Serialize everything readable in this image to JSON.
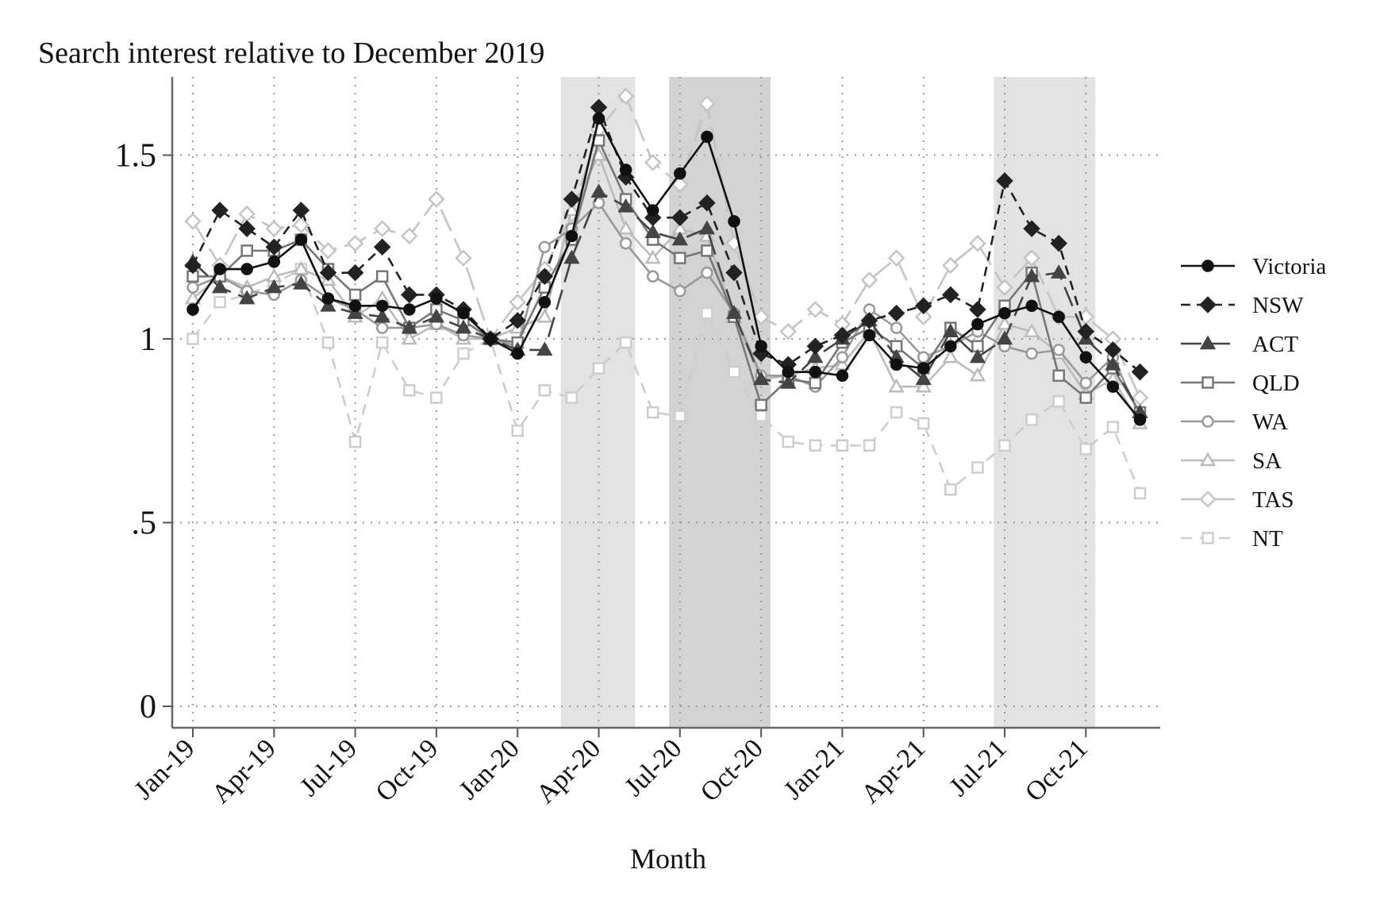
{
  "chart_data": {
    "type": "line",
    "title": "Search interest relative to December 2019",
    "xlabel": "Month",
    "ylabel": "",
    "ylim": [
      -0.04,
      1.71
    ],
    "yticks": [
      0,
      0.5,
      1,
      1.5
    ],
    "ytick_labels": [
      "0",
      ".5",
      "1",
      "1.5"
    ],
    "months": [
      "Jan-19",
      "Feb-19",
      "Mar-19",
      "Apr-19",
      "May-19",
      "Jun-19",
      "Jul-19",
      "Aug-19",
      "Sep-19",
      "Oct-19",
      "Nov-19",
      "Dec-19",
      "Jan-20",
      "Feb-20",
      "Mar-20",
      "Apr-20",
      "May-20",
      "Jun-20",
      "Jul-20",
      "Aug-20",
      "Sep-20",
      "Oct-20",
      "Nov-20",
      "Dec-20",
      "Jan-21",
      "Feb-21",
      "Mar-21",
      "Apr-21",
      "May-21",
      "Jun-21",
      "Jul-21",
      "Aug-21",
      "Sep-21",
      "Oct-21",
      "Nov-21",
      "Dec-21"
    ],
    "xtick_labels": [
      "Jan-19",
      "Apr-19",
      "Jul-19",
      "Oct-19",
      "Jan-20",
      "Apr-20",
      "Jul-20",
      "Oct-20",
      "Jan-21",
      "Apr-21",
      "Jul-21",
      "Oct-21"
    ],
    "xtick_indices": [
      0,
      3,
      6,
      9,
      12,
      15,
      18,
      21,
      24,
      27,
      30,
      33
    ],
    "grid": true,
    "legend_position": "right",
    "shaded_periods": [
      {
        "start": 13.6,
        "end": 16.35,
        "shade": "#e3e3e3"
      },
      {
        "start": 17.6,
        "end": 21.35,
        "shade": "#d3d3d3"
      },
      {
        "start": 29.6,
        "end": 33.35,
        "shade": "#e3e3e3"
      }
    ],
    "series": [
      {
        "name": "Victoria",
        "color": "#111111",
        "dash": "",
        "marker": "circle",
        "filled": true,
        "values": [
          1.08,
          1.19,
          1.19,
          1.21,
          1.27,
          1.11,
          1.09,
          1.09,
          1.08,
          1.11,
          1.07,
          1.0,
          0.96,
          1.1,
          1.28,
          1.6,
          1.46,
          1.35,
          1.45,
          1.55,
          1.32,
          0.98,
          0.91,
          0.91,
          0.9,
          1.01,
          0.93,
          0.92,
          0.98,
          1.04,
          1.07,
          1.09,
          1.06,
          0.95,
          0.87,
          0.78
        ]
      },
      {
        "name": "NSW",
        "color": "#222222",
        "dash": "12,8",
        "marker": "diamond",
        "filled": true,
        "values": [
          1.2,
          1.35,
          1.3,
          1.25,
          1.35,
          1.18,
          1.18,
          1.25,
          1.12,
          1.12,
          1.08,
          1.0,
          1.05,
          1.17,
          1.38,
          1.63,
          1.44,
          1.33,
          1.33,
          1.37,
          1.18,
          0.96,
          0.93,
          0.98,
          1.01,
          1.05,
          1.07,
          1.09,
          1.12,
          1.08,
          1.43,
          1.3,
          1.26,
          1.02,
          0.97,
          0.91
        ]
      },
      {
        "name": "ACT",
        "color": "#444444",
        "dash": "26,10",
        "marker": "triangle",
        "filled": true,
        "values": [
          1.21,
          1.14,
          1.11,
          1.14,
          1.15,
          1.09,
          1.07,
          1.06,
          1.03,
          1.06,
          1.03,
          1.0,
          0.97,
          0.97,
          1.22,
          1.4,
          1.36,
          1.29,
          1.27,
          1.3,
          1.07,
          0.89,
          0.88,
          0.95,
          1.0,
          1.05,
          0.95,
          0.89,
          1.02,
          0.95,
          1.0,
          1.17,
          1.18,
          1.0,
          0.93,
          0.8
        ]
      },
      {
        "name": "QLD",
        "color": "#777777",
        "dash": "",
        "marker": "square",
        "filled": false,
        "values": [
          1.17,
          1.17,
          1.24,
          1.24,
          1.27,
          1.19,
          1.12,
          1.17,
          1.03,
          1.08,
          1.05,
          1.0,
          0.99,
          1.14,
          1.27,
          1.54,
          1.38,
          1.27,
          1.22,
          1.24,
          1.06,
          0.82,
          0.89,
          0.88,
          0.99,
          1.03,
          0.98,
          0.92,
          1.03,
          0.98,
          1.09,
          1.18,
          0.9,
          0.84,
          0.92,
          0.8
        ]
      },
      {
        "name": "WA",
        "color": "#999999",
        "dash": "",
        "marker": "circle",
        "filled": false,
        "values": [
          1.14,
          1.17,
          1.13,
          1.12,
          1.16,
          1.11,
          1.08,
          1.03,
          1.03,
          1.04,
          1.01,
          1.0,
          0.98,
          1.25,
          1.3,
          1.37,
          1.26,
          1.17,
          1.13,
          1.18,
          1.07,
          0.9,
          0.9,
          0.87,
          0.95,
          1.08,
          1.03,
          0.95,
          0.98,
          1.02,
          0.98,
          0.96,
          0.97,
          0.88,
          0.95,
          0.79
        ]
      },
      {
        "name": "SA",
        "color": "#bbbbbb",
        "dash": "",
        "marker": "triangle",
        "filled": false,
        "values": [
          1.11,
          1.17,
          1.14,
          1.17,
          1.19,
          1.16,
          1.06,
          1.11,
          1.0,
          1.04,
          1.0,
          1.0,
          1.03,
          1.06,
          1.35,
          1.5,
          1.3,
          1.22,
          1.3,
          1.28,
          1.06,
          0.89,
          0.9,
          0.92,
          0.93,
          1.02,
          0.87,
          0.87,
          0.95,
          0.9,
          1.04,
          1.02,
          0.96,
          0.85,
          0.89,
          0.77
        ]
      },
      {
        "name": "TAS",
        "color": "#c4c4c4",
        "dash": "30,10",
        "marker": "diamond",
        "filled": false,
        "values": [
          1.32,
          1.2,
          1.34,
          1.3,
          1.31,
          1.24,
          1.26,
          1.3,
          1.28,
          1.38,
          1.22,
          1.0,
          1.1,
          1.19,
          1.34,
          1.57,
          1.66,
          1.48,
          1.42,
          1.64,
          1.26,
          1.06,
          1.02,
          1.08,
          1.04,
          1.16,
          1.22,
          1.06,
          1.2,
          1.26,
          1.14,
          1.22,
          1.06,
          1.06,
          1.0,
          0.84
        ]
      },
      {
        "name": "NT",
        "color": "#cdcdcd",
        "dash": "14,10",
        "marker": "square",
        "filled": false,
        "values": [
          1.0,
          1.1,
          1.12,
          1.15,
          1.19,
          0.99,
          0.72,
          0.99,
          0.86,
          0.84,
          0.96,
          1.0,
          0.75,
          0.86,
          0.84,
          0.92,
          0.99,
          0.8,
          0.79,
          1.07,
          0.91,
          0.79,
          0.72,
          0.71,
          0.71,
          0.71,
          0.8,
          0.77,
          0.59,
          0.65,
          0.71,
          0.78,
          0.83,
          0.7,
          0.76,
          0.58
        ]
      }
    ]
  }
}
